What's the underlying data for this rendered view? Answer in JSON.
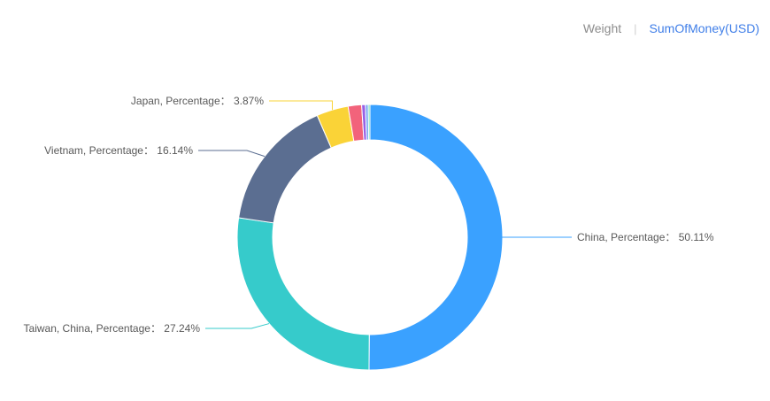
{
  "tabs": [
    {
      "label": "Weight",
      "active": false
    },
    {
      "label": "SumOfMoney(USD)",
      "active": true
    }
  ],
  "chart_data": {
    "type": "pie",
    "style": "donut",
    "slices": [
      {
        "name": "China",
        "percentage": 50.11,
        "label": "China,  Percentage： 50.11%",
        "color": "#3aa1ff"
      },
      {
        "name": "Taiwan, China",
        "percentage": 27.24,
        "label": "Taiwan, China,  Percentage： 27.24%",
        "color": "#36cbcb"
      },
      {
        "name": "Vietnam",
        "percentage": 16.14,
        "label": "Vietnam,  Percentage： 16.14%",
        "color": "#5b6e91"
      },
      {
        "name": "Japan",
        "percentage": 3.87,
        "label": "Japan,  Percentage： 3.87%",
        "color": "#fad337"
      },
      {
        "name": "",
        "percentage": 1.64,
        "label": "",
        "color": "#f2637b"
      },
      {
        "name": "",
        "percentage": 0.45,
        "label": "",
        "color": "#975fe4"
      },
      {
        "name": "",
        "percentage": 0.35,
        "label": "",
        "color": "#7aa7f5"
      },
      {
        "name": "",
        "percentage": 0.2,
        "label": "",
        "color": "#5ad8a6"
      }
    ]
  }
}
